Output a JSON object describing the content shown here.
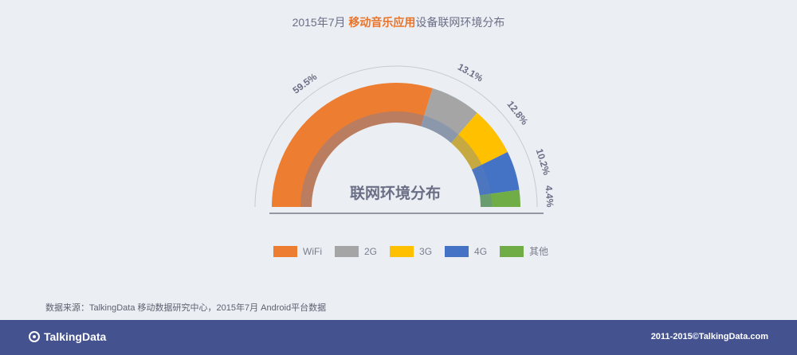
{
  "header": {
    "title_prefix": "2015年7月 ",
    "title_highlight": "移动音乐应用",
    "title_suffix": "设备联网环境分布"
  },
  "chart_data": {
    "type": "pie",
    "subtype": "half-donut",
    "center_label": "联网环境分布",
    "categories": [
      "WiFi",
      "2G",
      "3G",
      "4G",
      "其他"
    ],
    "values": [
      59.5,
      13.1,
      12.8,
      10.2,
      4.4
    ],
    "labels": [
      "59.5%",
      "13.1%",
      "12.8%",
      "10.2%",
      "4.4%"
    ],
    "colors": [
      "#ed7d31",
      "#a5a5a5",
      "#ffc000",
      "#4472c4",
      "#70ad47"
    ],
    "legend_position": "bottom"
  },
  "source": "数据来源：TalkingData 移动数据研究中心，2015年7月 Android平台数据",
  "footer": {
    "logo_text": "TalkingData",
    "copyright": "2011-2015©TalkingData.com"
  }
}
